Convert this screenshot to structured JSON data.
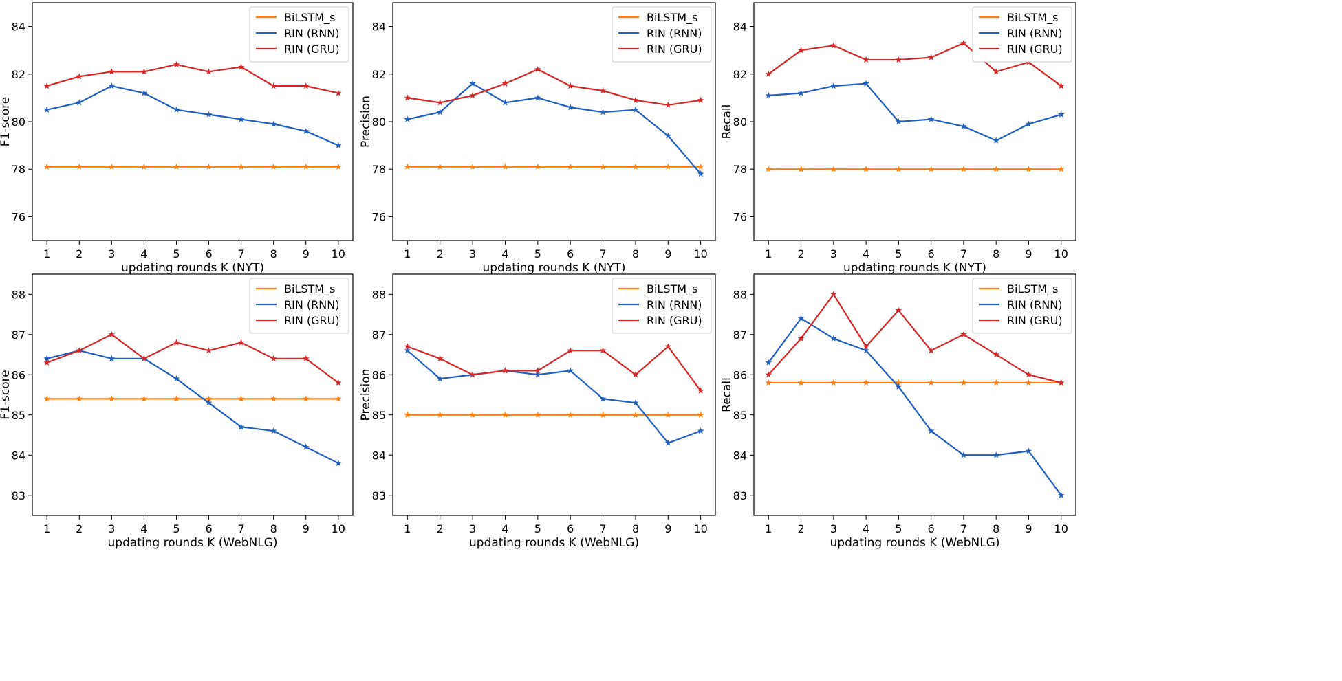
{
  "colors": {
    "BiLSTM_s": "#ff7f0e",
    "RIN (RNN)": "#1f5fbf",
    "RIN (GRU)": "#d62728"
  },
  "chart_data": [
    {
      "type": "line",
      "xlabel": "updating rounds K (NYT)",
      "ylabel": "F1-score",
      "x": [
        1,
        2,
        3,
        4,
        5,
        6,
        7,
        8,
        9,
        10
      ],
      "ylim": [
        75,
        85
      ],
      "yticks": [
        76,
        78,
        80,
        82,
        84
      ],
      "legend": "top-right",
      "grid": false,
      "series": [
        {
          "name": "BiLSTM_s",
          "values": [
            78.1,
            78.1,
            78.1,
            78.1,
            78.1,
            78.1,
            78.1,
            78.1,
            78.1,
            78.1
          ]
        },
        {
          "name": "RIN (RNN)",
          "values": [
            80.5,
            80.8,
            81.5,
            81.2,
            80.5,
            80.3,
            80.1,
            79.9,
            79.6,
            79.0
          ]
        },
        {
          "name": "RIN (GRU)",
          "values": [
            81.5,
            81.9,
            82.1,
            82.1,
            82.4,
            82.1,
            82.3,
            81.5,
            81.5,
            81.2
          ]
        }
      ]
    },
    {
      "type": "line",
      "xlabel": "updating rounds K (NYT)",
      "ylabel": "Precision",
      "x": [
        1,
        2,
        3,
        4,
        5,
        6,
        7,
        8,
        9,
        10
      ],
      "ylim": [
        75,
        85
      ],
      "yticks": [
        76,
        78,
        80,
        82,
        84
      ],
      "legend": "top-right",
      "grid": false,
      "series": [
        {
          "name": "BiLSTM_s",
          "values": [
            78.1,
            78.1,
            78.1,
            78.1,
            78.1,
            78.1,
            78.1,
            78.1,
            78.1,
            78.1
          ]
        },
        {
          "name": "RIN (RNN)",
          "values": [
            80.1,
            80.4,
            81.6,
            80.8,
            81.0,
            80.6,
            80.4,
            80.5,
            79.4,
            77.8
          ]
        },
        {
          "name": "RIN (GRU)",
          "values": [
            81.0,
            80.8,
            81.1,
            81.6,
            82.2,
            81.5,
            81.3,
            80.9,
            80.7,
            80.9
          ]
        }
      ]
    },
    {
      "type": "line",
      "xlabel": "updating rounds K (NYT)",
      "ylabel": "Recall",
      "x": [
        1,
        2,
        3,
        4,
        5,
        6,
        7,
        8,
        9,
        10
      ],
      "ylim": [
        75,
        85
      ],
      "yticks": [
        76,
        78,
        80,
        82,
        84
      ],
      "legend": "top-right",
      "grid": false,
      "series": [
        {
          "name": "BiLSTM_s",
          "values": [
            78.0,
            78.0,
            78.0,
            78.0,
            78.0,
            78.0,
            78.0,
            78.0,
            78.0,
            78.0
          ]
        },
        {
          "name": "RIN (RNN)",
          "values": [
            81.1,
            81.2,
            81.5,
            81.6,
            80.0,
            80.1,
            79.8,
            79.2,
            79.9,
            80.3
          ]
        },
        {
          "name": "RIN (GRU)",
          "values": [
            82.0,
            83.0,
            83.2,
            82.6,
            82.6,
            82.7,
            83.3,
            82.1,
            82.5,
            81.5
          ]
        }
      ]
    },
    {
      "type": "line",
      "xlabel": "updating rounds K (WebNLG)",
      "ylabel": "F1-score",
      "x": [
        1,
        2,
        3,
        4,
        5,
        6,
        7,
        8,
        9,
        10
      ],
      "ylim": [
        82.5,
        88.5
      ],
      "yticks": [
        83,
        84,
        85,
        86,
        87,
        88
      ],
      "legend": "top-right",
      "grid": false,
      "series": [
        {
          "name": "BiLSTM_s",
          "values": [
            85.4,
            85.4,
            85.4,
            85.4,
            85.4,
            85.4,
            85.4,
            85.4,
            85.4,
            85.4
          ]
        },
        {
          "name": "RIN (RNN)",
          "values": [
            86.4,
            86.6,
            86.4,
            86.4,
            85.9,
            85.3,
            84.7,
            84.6,
            84.2,
            83.8
          ]
        },
        {
          "name": "RIN (GRU)",
          "values": [
            86.3,
            86.6,
            87.0,
            86.4,
            86.8,
            86.6,
            86.8,
            86.4,
            86.4,
            85.8
          ]
        }
      ]
    },
    {
      "type": "line",
      "xlabel": "updating rounds K (WebNLG)",
      "ylabel": "Precision",
      "x": [
        1,
        2,
        3,
        4,
        5,
        6,
        7,
        8,
        9,
        10
      ],
      "ylim": [
        82.5,
        88.5
      ],
      "yticks": [
        83,
        84,
        85,
        86,
        87,
        88
      ],
      "legend": "top-right",
      "grid": false,
      "series": [
        {
          "name": "BiLSTM_s",
          "values": [
            85.0,
            85.0,
            85.0,
            85.0,
            85.0,
            85.0,
            85.0,
            85.0,
            85.0,
            85.0
          ]
        },
        {
          "name": "RIN (RNN)",
          "values": [
            86.6,
            85.9,
            86.0,
            86.1,
            86.0,
            86.1,
            85.4,
            85.3,
            84.3,
            84.6
          ]
        },
        {
          "name": "RIN (GRU)",
          "values": [
            86.7,
            86.4,
            86.0,
            86.1,
            86.1,
            86.6,
            86.6,
            86.0,
            86.7,
            85.6
          ]
        }
      ]
    },
    {
      "type": "line",
      "xlabel": "updating rounds K (WebNLG)",
      "ylabel": "Recall",
      "x": [
        1,
        2,
        3,
        4,
        5,
        6,
        7,
        8,
        9,
        10
      ],
      "ylim": [
        82.5,
        88.5
      ],
      "yticks": [
        83,
        84,
        85,
        86,
        87,
        88
      ],
      "legend": "top-right",
      "grid": false,
      "series": [
        {
          "name": "BiLSTM_s",
          "values": [
            85.8,
            85.8,
            85.8,
            85.8,
            85.8,
            85.8,
            85.8,
            85.8,
            85.8,
            85.8
          ]
        },
        {
          "name": "RIN (RNN)",
          "values": [
            86.3,
            87.4,
            86.9,
            86.6,
            85.7,
            84.6,
            84.0,
            84.0,
            84.1,
            83.0
          ]
        },
        {
          "name": "RIN (GRU)",
          "values": [
            86.0,
            86.9,
            88.0,
            86.7,
            87.6,
            86.6,
            87.0,
            86.5,
            86.0,
            85.8
          ]
        }
      ]
    }
  ]
}
